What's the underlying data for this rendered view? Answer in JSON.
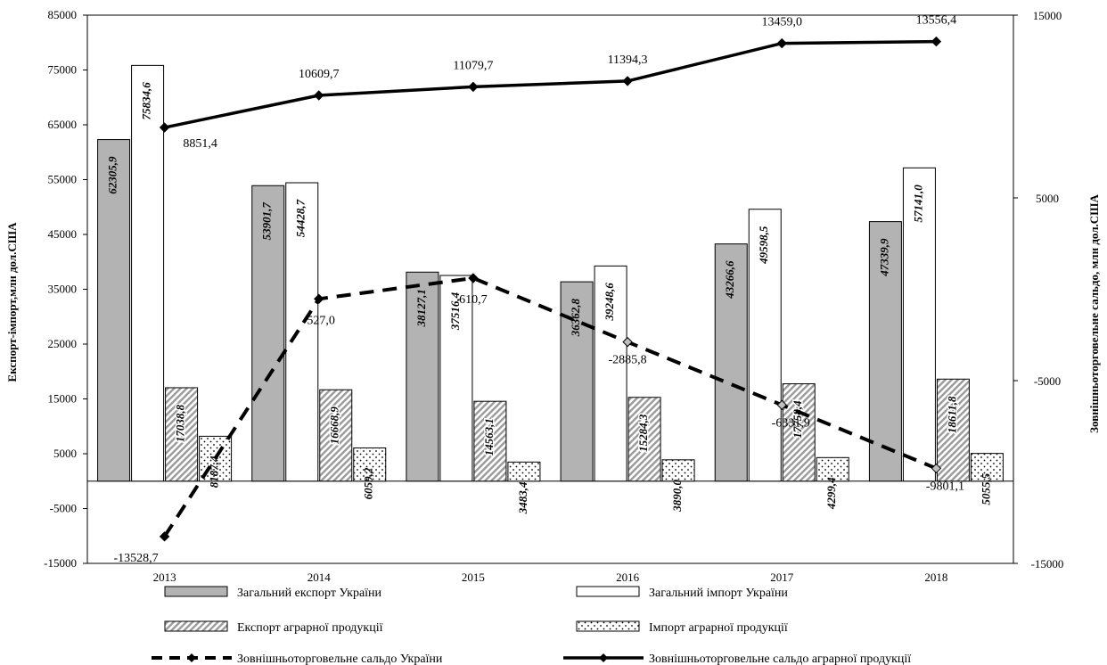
{
  "chart_data": {
    "type": "bar",
    "categories": [
      "2013",
      "2014",
      "2015",
      "2016",
      "2017",
      "2018"
    ],
    "ylabel": "Експорт-імпорт,млн  дол.США",
    "y2label": "Зовнішньоторговельне сальдо, млн дол.США",
    "ylim": [
      -15000,
      85000
    ],
    "y2lim": [
      -15000,
      15000
    ],
    "yticks": [
      "85000",
      "75000",
      "65000",
      "55000",
      "45000",
      "35000",
      "25000",
      "15000",
      "5000",
      "-5000",
      "-15000"
    ],
    "y2ticks": [
      "15000",
      "5000",
      "-5000",
      "-15000"
    ],
    "grid": false,
    "legend_position": "bottom",
    "bar_series": [
      {
        "name": "Загальний експорт України",
        "color": "#b3b3b3",
        "pattern": "solid",
        "values": [
          62305.9,
          53901.7,
          38127.1,
          36362.8,
          43266.6,
          47339.9
        ],
        "labels": [
          "62305,9",
          "53901,7",
          "38127,1",
          "36362,8",
          "43266,6",
          "47339,9"
        ]
      },
      {
        "name": "Загальний імпорт України",
        "color": "#ffffff",
        "pattern": "white",
        "values": [
          75834.6,
          54428.7,
          37516.4,
          39248.6,
          49598.5,
          57141.0
        ],
        "labels": [
          "75834,6",
          "54428,7",
          "37516,4",
          "39248,6",
          "49598,5",
          "57141,0"
        ]
      },
      {
        "name": "Експорт аграрної продукції",
        "color": "#d0d0d0",
        "pattern": "hatch",
        "values": [
          17038.8,
          16668.9,
          14563.1,
          15284.3,
          17758.4,
          18611.8
        ],
        "labels": [
          "17038,8",
          "16668,9",
          "14563,1",
          "15284,3",
          "17758,4",
          "18611,8"
        ]
      },
      {
        "name": "Імпорт аграрної продукції",
        "color": "#ffffff",
        "pattern": "dots",
        "values": [
          8187.4,
          6059.2,
          3483.4,
          3890.0,
          4299.4,
          5055.5
        ],
        "labels": [
          "8187,4",
          "6059,2",
          "3483,4",
          "3890,0",
          "4299,4",
          "5055,5"
        ]
      }
    ],
    "line_series": [
      {
        "name": "Зовнішньоторговельне сальдо України",
        "axis": "secondary",
        "style": "dashed",
        "color": "#000000",
        "values": [
          -13528.7,
          -527.0,
          610.7,
          -2885.8,
          -6331.9,
          -9801.1
        ],
        "labels": [
          "-13528,7",
          "-527,0",
          "610,7",
          "-2885,8",
          "-6331,9",
          "-9801,1"
        ]
      },
      {
        "name": "Зовнішньоторговельне сальдо аграрної продукції",
        "axis": "secondary",
        "style": "solid",
        "color": "#000000",
        "values": [
          8851.4,
          10609.7,
          11079.7,
          11394.3,
          13459.0,
          13556.4
        ],
        "labels": [
          "8851,4",
          "10609,7",
          "11079,7",
          "11394,3",
          "13459,0",
          "13556,4"
        ]
      }
    ]
  }
}
